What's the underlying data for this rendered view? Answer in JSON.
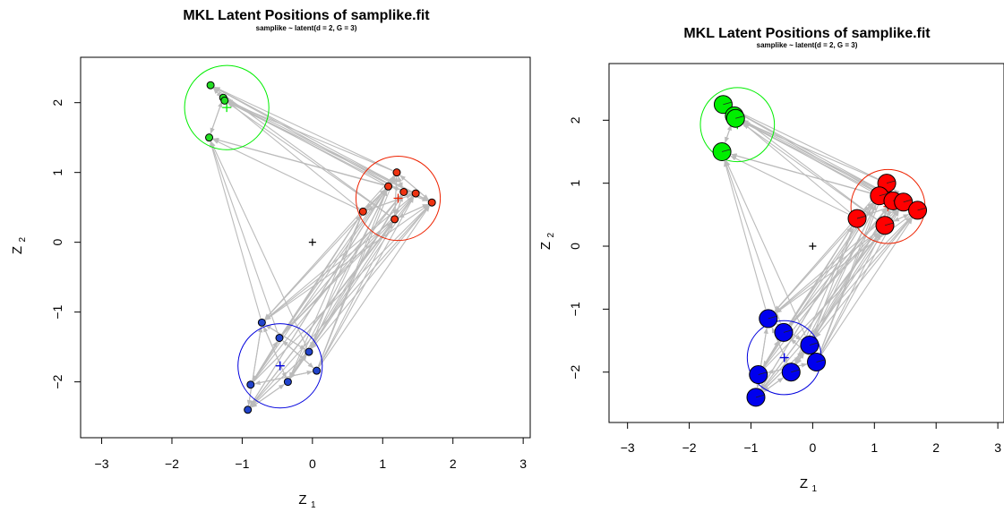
{
  "chart_data": [
    {
      "type": "scatter",
      "title": "MKL Latent Positions of samplike.fit",
      "subtitle": "samplike ~ latent(d = 2, G = 3)",
      "xlabel": "Z",
      "xlabel_sub": "1",
      "ylabel": "Z",
      "ylabel_sub": "2",
      "xlim": [
        -3.3,
        3.1
      ],
      "ylim": [
        -2.8,
        2.65
      ],
      "x_ticks": [
        -3,
        -2,
        -1,
        0,
        1,
        2,
        3
      ],
      "y_ticks": [
        -2,
        -1,
        0,
        1,
        2
      ],
      "x_tick_labels": [
        "−3",
        "−2",
        "−1",
        "0",
        "1",
        "2",
        "3"
      ],
      "y_tick_labels": [
        "−2",
        "−1",
        "0",
        "1",
        "2"
      ],
      "marker_style": "small",
      "center_marker": {
        "x": 0,
        "y": 0,
        "color": "#000000"
      },
      "clusters": [
        {
          "color": "#00ee00",
          "fill": "#22dd22",
          "center": [
            -1.22,
            1.93
          ],
          "radius": 0.6,
          "points": [
            [
              -1.45,
              2.25
            ],
            [
              -1.27,
              2.07
            ],
            [
              -1.25,
              2.03
            ],
            [
              -1.47,
              1.5
            ]
          ]
        },
        {
          "color": "#ee2200",
          "fill": "#ee3311",
          "center": [
            1.22,
            0.63
          ],
          "radius": 0.6,
          "points": [
            [
              1.2,
              1.0
            ],
            [
              1.08,
              0.8
            ],
            [
              1.3,
              0.72
            ],
            [
              1.47,
              0.7
            ],
            [
              1.7,
              0.57
            ],
            [
              0.72,
              0.44
            ],
            [
              1.17,
              0.33
            ]
          ]
        },
        {
          "color": "#0000dd",
          "fill": "#2244cc",
          "center": [
            -0.46,
            -1.77
          ],
          "radius": 0.6,
          "points": [
            [
              -0.72,
              -1.15
            ],
            [
              -0.47,
              -1.37
            ],
            [
              -0.05,
              -1.57
            ],
            [
              0.06,
              -1.84
            ],
            [
              -0.35,
              -2.0
            ],
            [
              -0.88,
              -2.04
            ],
            [
              -0.92,
              -2.4
            ]
          ]
        }
      ]
    },
    {
      "type": "scatter",
      "title": "MKL Latent Positions of samplike.fit",
      "subtitle": "samplike ~ latent(d = 2, G = 3)",
      "xlabel": "Z",
      "xlabel_sub": "1",
      "ylabel": "Z",
      "ylabel_sub": "2",
      "xlim": [
        -3.3,
        3.1
      ],
      "ylim": [
        -2.8,
        2.9
      ],
      "x_ticks": [
        -3,
        -2,
        -1,
        0,
        1,
        2,
        3
      ],
      "y_ticks": [
        -2,
        -1,
        0,
        1,
        2
      ],
      "x_tick_labels": [
        "−3",
        "−2",
        "−1",
        "0",
        "1",
        "2",
        "3"
      ],
      "y_tick_labels": [
        "−2",
        "−1",
        "0",
        "1",
        "2"
      ],
      "marker_style": "pie",
      "center_marker": {
        "x": 0,
        "y": 0,
        "color": "#000000"
      },
      "clusters": [
        {
          "color": "#00ee00",
          "fill": "#00ee00",
          "center": [
            -1.22,
            1.93
          ],
          "radius": 0.6,
          "points": [
            [
              -1.45,
              2.25
            ],
            [
              -1.27,
              2.07
            ],
            [
              -1.25,
              2.03
            ],
            [
              -1.47,
              1.5
            ]
          ]
        },
        {
          "color": "#ee2200",
          "fill": "#ff0000",
          "center": [
            1.22,
            0.63
          ],
          "radius": 0.6,
          "points": [
            [
              1.2,
              1.0
            ],
            [
              1.08,
              0.8
            ],
            [
              1.3,
              0.72
            ],
            [
              1.47,
              0.7
            ],
            [
              1.7,
              0.57
            ],
            [
              0.72,
              0.44
            ],
            [
              1.17,
              0.33
            ]
          ]
        },
        {
          "color": "#0000dd",
          "fill": "#0000ee",
          "center": [
            -0.46,
            -1.77
          ],
          "radius": 0.6,
          "points": [
            [
              -0.72,
              -1.15
            ],
            [
              -0.47,
              -1.37
            ],
            [
              -0.05,
              -1.57
            ],
            [
              0.06,
              -1.84
            ],
            [
              -0.35,
              -2.0
            ],
            [
              -0.88,
              -2.04
            ],
            [
              -0.92,
              -2.4
            ]
          ]
        }
      ]
    }
  ]
}
